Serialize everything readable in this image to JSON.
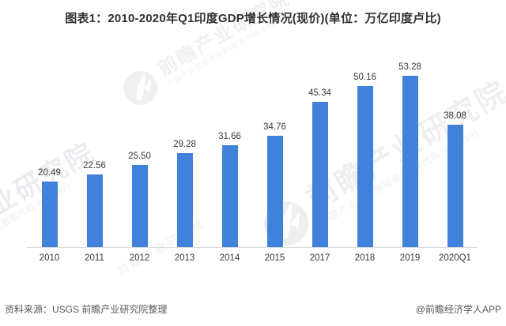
{
  "title": "图表1：2010-2020年Q1印度GDP增长情况(现价)(单位：万亿印度卢比)",
  "chart_data": {
    "type": "bar",
    "title": "图表1：2010-2020年Q1印度GDP增长情况(现价)(单位：万亿印度卢比)",
    "categories": [
      "2010",
      "2011",
      "2012",
      "2013",
      "2014",
      "2015",
      "2017",
      "2018",
      "2019",
      "2020Q1"
    ],
    "values": [
      20.49,
      22.56,
      25.5,
      29.28,
      31.66,
      34.76,
      45.34,
      50.16,
      53.28,
      38.08
    ],
    "value_labels": [
      "20.49",
      "22.56",
      "25.50",
      "29.28",
      "31.66",
      "34.76",
      "45.34",
      "50.16",
      "53.28",
      "38.08"
    ],
    "xlabel": "",
    "ylabel": "",
    "unit": "万亿印度卢比",
    "ylim": [
      0,
      60
    ],
    "grid": false,
    "legend": "none",
    "bar_color": "#4081dc",
    "axis_line_color": "#d9d9d9",
    "value_label_color": "#3a3a3a",
    "tick_label_color": "#3a3a3a"
  },
  "footer": {
    "source": "资料来源：USGS 前瞻产业研究院整理",
    "credit": "@前瞻经济学人APP",
    "text_color": "#595959"
  },
  "watermark": {
    "brand_text": "前瞻产业研究院",
    "sub_text": "中国产业咨询领导者(股票代码:839599)"
  }
}
